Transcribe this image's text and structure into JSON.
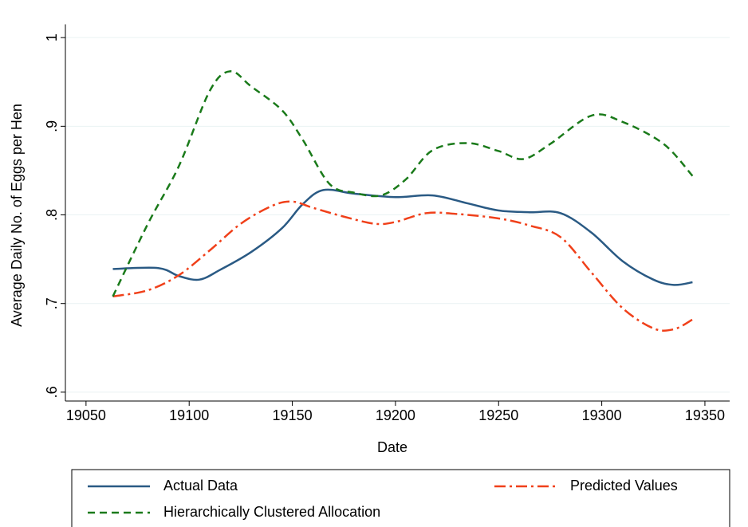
{
  "chart_data": {
    "type": "line",
    "x_label": "Date",
    "y_label": "Average Daily No. of Eggs per Hen",
    "xlim": [
      19040,
      19362
    ],
    "xticks": [
      19050,
      19100,
      19150,
      19200,
      19250,
      19300,
      19350
    ],
    "ylim": [
      0.59,
      1.015
    ],
    "yticks": [
      {
        "value": 0.6,
        "label": ".6"
      },
      {
        "value": 0.7,
        "label": ".7"
      },
      {
        "value": 0.8,
        "label": ".8"
      },
      {
        "value": 0.9,
        "label": ".9"
      },
      {
        "value": 1,
        "label": "1"
      }
    ],
    "grid": true,
    "legend": "bottom",
    "series": [
      {
        "name": "Actual Data",
        "color": "#2a5a84",
        "dash": "solid",
        "x": [
          19063,
          19085,
          19095,
          19105,
          19115,
          19130,
          19145,
          19155,
          19165,
          19180,
          19200,
          19218,
          19235,
          19250,
          19265,
          19280,
          19295,
          19310,
          19325,
          19335,
          19344
        ],
        "values": [
          0.739,
          0.74,
          0.731,
          0.727,
          0.738,
          0.758,
          0.785,
          0.812,
          0.828,
          0.824,
          0.82,
          0.822,
          0.813,
          0.805,
          0.803,
          0.802,
          0.78,
          0.748,
          0.727,
          0.721,
          0.724
        ]
      },
      {
        "name": "Predicted Values",
        "color": "#f0401a",
        "dash": "dashdot",
        "x": [
          19063,
          19080,
          19095,
          19110,
          19125,
          19140,
          19150,
          19160,
          19175,
          19190,
          19200,
          19215,
          19230,
          19250,
          19265,
          19280,
          19295,
          19310,
          19325,
          19335,
          19344
        ],
        "values": [
          0.708,
          0.715,
          0.732,
          0.76,
          0.79,
          0.81,
          0.815,
          0.808,
          0.798,
          0.79,
          0.792,
          0.802,
          0.801,
          0.796,
          0.788,
          0.775,
          0.735,
          0.695,
          0.672,
          0.671,
          0.682
        ]
      },
      {
        "name": "Hierarchically Clustered Allocation",
        "color": "#1a7a1a",
        "dash": "dash",
        "x": [
          19063,
          19080,
          19095,
          19110,
          19120,
          19130,
          19145,
          19155,
          19168,
          19180,
          19193,
          19205,
          19218,
          19235,
          19250,
          19262,
          19275,
          19295,
          19310,
          19330,
          19344
        ],
        "values": [
          0.708,
          0.79,
          0.855,
          0.94,
          0.962,
          0.945,
          0.918,
          0.885,
          0.835,
          0.825,
          0.822,
          0.84,
          0.873,
          0.881,
          0.872,
          0.863,
          0.88,
          0.912,
          0.905,
          0.88,
          0.844
        ]
      }
    ]
  }
}
